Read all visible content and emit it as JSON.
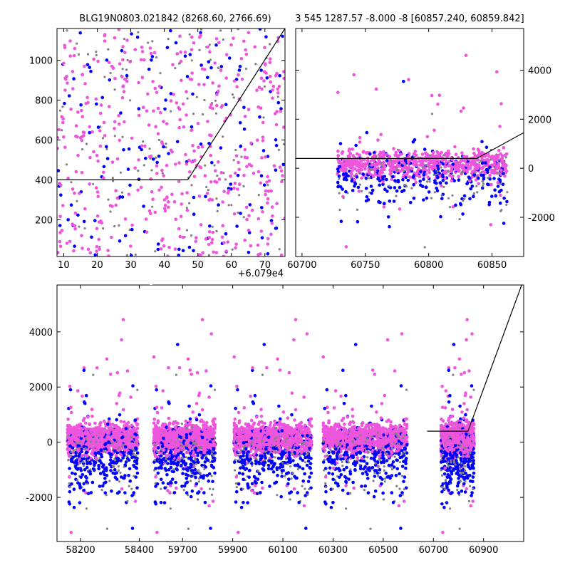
{
  "colors": {
    "gray": "#808080",
    "blue": "#0000ff",
    "pink": "#ee55dd",
    "line": "#000000"
  },
  "chart_data": [
    {
      "type": "scatter",
      "title": "BLG19N0803.021842 (8268.60, 2766.69)",
      "x_offset_label": "+6.079e4",
      "xlim": [
        8,
        76
      ],
      "ylim": [
        15,
        1160
      ],
      "xticks": [
        10,
        20,
        30,
        40,
        50,
        60,
        70
      ],
      "yticks": [
        200,
        400,
        600,
        800,
        1000
      ],
      "model_line": [
        [
          8,
          400
        ],
        [
          47,
          400
        ],
        [
          76,
          1160
        ]
      ],
      "points_per_color": 150,
      "y_range_points": [
        15,
        1160
      ]
    },
    {
      "type": "scatter",
      "title": "3 545 1287.57 -8.000 -8 [60857.240, 60859.842]",
      "xlim": [
        60695,
        60875
      ],
      "ylim": [
        -3600,
        5700
      ],
      "xticks": [
        60700,
        60750,
        60800,
        60850
      ],
      "yticks": [
        -2000,
        0,
        2000,
        4000
      ],
      "yaxis_side": "right",
      "model_line": [
        [
          60695,
          400
        ],
        [
          60838,
          400
        ],
        [
          60875,
          1450
        ]
      ],
      "observing_seasons": [
        [
          60728,
          60862
        ]
      ]
    },
    {
      "type": "scatter",
      "xlim": [
        58120,
        61060
      ],
      "ylim": [
        -3600,
        5700
      ],
      "xticks": [
        "58200",
        "58400",
        "59700",
        "59900",
        "60100",
        "60300",
        "60500",
        "60700",
        "60900"
      ],
      "yticks": [
        -2000,
        0,
        2000,
        4000
      ],
      "axis_break": true,
      "model_line": [
        [
          60675,
          400
        ],
        [
          60838,
          400
        ],
        [
          61060,
          5900
        ]
      ],
      "observing_seasons": [
        [
          58155,
          58395
        ],
        [
          59585,
          59830
        ],
        [
          59905,
          60215
        ],
        [
          60260,
          60595
        ],
        [
          60730,
          60862
        ]
      ]
    }
  ]
}
